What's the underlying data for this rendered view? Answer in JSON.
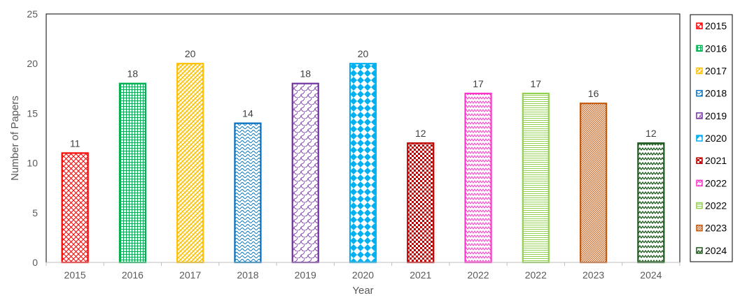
{
  "chart_data": {
    "type": "bar",
    "categories": [
      "2015",
      "2016",
      "2017",
      "2018",
      "2019",
      "2020",
      "2021",
      "2022",
      "2022",
      "2023",
      "2024"
    ],
    "values": [
      11,
      18,
      20,
      14,
      18,
      20,
      12,
      17,
      17,
      16,
      12
    ],
    "colors": [
      "#ff0000",
      "#00b050",
      "#ffc000",
      "#0070c0",
      "#7030a0",
      "#00b0f0",
      "#c00000",
      "#ff33cc",
      "#92d050",
      "#c55a11",
      "#1e5a1e"
    ],
    "patterns": [
      "diagonal-cross",
      "grid",
      "checker-diagonal",
      "wave-horizontal",
      "scallop",
      "diamond",
      "checker",
      "zigzag",
      "horizontal-lines",
      "diagonal-fine",
      "zigzag-bold"
    ],
    "xlabel": "Year",
    "ylabel": "Number of Papers",
    "ylim": [
      0,
      25
    ],
    "yticks": [
      0,
      5,
      10,
      15,
      20,
      25
    ],
    "data_labels": true,
    "grid": false,
    "legend": {
      "placement": "right",
      "entries": [
        "2015",
        "2016",
        "2017",
        "2018",
        "2019",
        "2020",
        "2021",
        "2022",
        "2022",
        "2023",
        "2024"
      ]
    }
  }
}
